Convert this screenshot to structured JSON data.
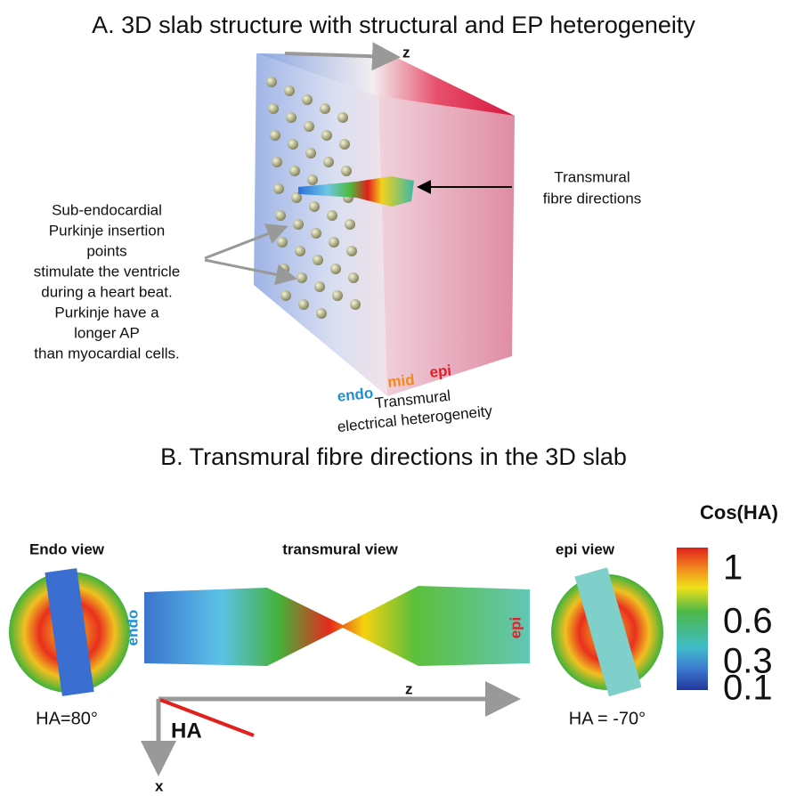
{
  "panel_a": {
    "title": "A. 3D slab structure with structural and EP heterogeneity",
    "axis_label": "z",
    "fibre_note": [
      "Transmural",
      "fibre directions"
    ],
    "purkinje_note": [
      "Sub-endocardial",
      "Purkinje insertion",
      "points",
      "stimulate the ventricle",
      "during a heart beat.",
      "Purkinje have a",
      "longer AP",
      "than myocardial cells."
    ],
    "layers": [
      "endo",
      "mid",
      "epi"
    ],
    "heterogeneity_note": [
      "Transmural",
      "electrical heterogeneity"
    ]
  },
  "panel_b": {
    "title": "B. Transmural fibre directions in the 3D slab",
    "endo_view": {
      "label": "Endo view",
      "angle": "HA=80°"
    },
    "transmural_view": {
      "label": "transmural view",
      "endo": "endo",
      "epi": "epi",
      "z_label": "z",
      "x_label": "x",
      "angle_label": "HA"
    },
    "epi_view": {
      "label": "epi view",
      "angle": "HA = -70°"
    },
    "colorbar": {
      "title": "Cos(HA)",
      "ticks": [
        1,
        0.6,
        0.3,
        0.1
      ]
    }
  }
}
